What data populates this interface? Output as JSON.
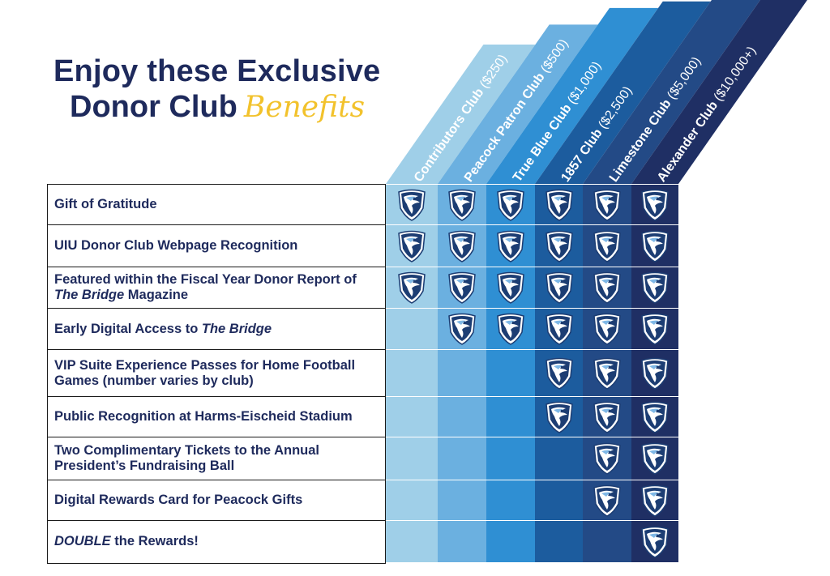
{
  "title": {
    "line1": "Enjoy these Exclusive",
    "line2": "Donor Club",
    "accent": "Benefits"
  },
  "colors": {
    "navy_text": "#1e2a5c",
    "accent_gold": "#f2c22c",
    "tier_colors": [
      "#9fcfe8",
      "#6bb0e0",
      "#2f8fd3",
      "#1c5c9e",
      "#234a86",
      "#1f2f64"
    ]
  },
  "tiers": [
    {
      "name": "Contributors Club",
      "amount": "($250)"
    },
    {
      "name": "Peacock Patron Club",
      "amount": "($500)"
    },
    {
      "name": "True Blue Club",
      "amount": "($1,000)"
    },
    {
      "name": "1857 Club",
      "amount": "($2,500)"
    },
    {
      "name": "Limestone Club",
      "amount": "($5,000)"
    },
    {
      "name": "Alexander Club",
      "amount": "($10,000+)"
    }
  ],
  "benefits": [
    {
      "parts": [
        {
          "t": "Gift of Gratitude"
        }
      ],
      "included": [
        true,
        true,
        true,
        true,
        true,
        true
      ]
    },
    {
      "parts": [
        {
          "t": "UIU Donor Club Webpage Recognition"
        }
      ],
      "included": [
        true,
        true,
        true,
        true,
        true,
        true
      ]
    },
    {
      "parts": [
        {
          "t": "Featured within the Fiscal Year Donor Report of "
        },
        {
          "t": "The Bridge",
          "i": true
        },
        {
          "t": " Magazine"
        }
      ],
      "included": [
        true,
        true,
        true,
        true,
        true,
        true
      ]
    },
    {
      "parts": [
        {
          "t": "Early Digital Access to "
        },
        {
          "t": "The Bridge",
          "i": true
        }
      ],
      "included": [
        false,
        true,
        true,
        true,
        true,
        true
      ]
    },
    {
      "parts": [
        {
          "t": "VIP Suite Experience Passes for Home Football Games (number varies by club)"
        }
      ],
      "included": [
        false,
        false,
        false,
        true,
        true,
        true
      ]
    },
    {
      "parts": [
        {
          "t": "Public Recognition at Harms-Eischeid Stadium"
        }
      ],
      "included": [
        false,
        false,
        false,
        true,
        true,
        true
      ]
    },
    {
      "parts": [
        {
          "t": "Two Complimentary Tickets to the Annual President’s Fundraising Ball"
        }
      ],
      "included": [
        false,
        false,
        false,
        false,
        true,
        true
      ]
    },
    {
      "parts": [
        {
          "t": "Digital Rewards Card for Peacock Gifts"
        }
      ],
      "included": [
        false,
        false,
        false,
        false,
        true,
        true
      ]
    },
    {
      "parts": [
        {
          "t": "DOUBLE",
          "i": true
        },
        {
          "t": " the Rewards!"
        }
      ],
      "included": [
        false,
        false,
        false,
        false,
        false,
        true
      ]
    }
  ],
  "icon": "peacock-shield-icon"
}
